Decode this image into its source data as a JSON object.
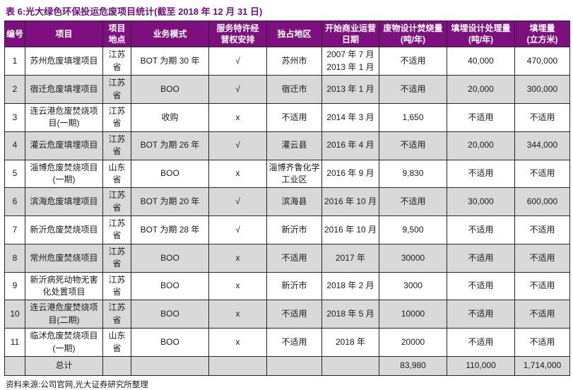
{
  "title": "表 6:光大绿色环保投运危废项目统计(截至 2018 年 12 月 31 日)",
  "columns": [
    "编号",
    "项目",
    "项目\n地点",
    "业务模式",
    "服务特许经\n营权安排",
    "独占地区",
    "开始商业运营\n日期",
    "废物设计焚烧量\n(吨/年)",
    "填埋设计处理量\n(吨/年)",
    "填埋量\n(立方米)"
  ],
  "rows": [
    [
      "1",
      "苏州危废填埋项目",
      "江苏省",
      "BOT 为期 30 年",
      "√",
      "苏州市",
      "2007 年 7 月\n2013 年 1 月",
      "不适用",
      "40,000",
      "470,000"
    ],
    [
      "2",
      "宿迁危废填埋项目",
      "江苏省",
      "BOO",
      "√",
      "宿迁市",
      "2013 年 1 月",
      "不适用",
      "20,000",
      "300,000"
    ],
    [
      "3",
      "连云港危废焚烧项目(一期)",
      "江苏省",
      "收购",
      "x",
      "不适用",
      "2014 年 3 月",
      "1,650",
      "不适用",
      "不适用"
    ],
    [
      "4",
      "灌云危废填埋项目",
      "江苏省",
      "BOT 为期 26 年",
      "√",
      "灌云县",
      "2016 年 4 月",
      "不适用",
      "20,000",
      "344,000"
    ],
    [
      "5",
      "淄博危废焚烧项目(一期)",
      "山东省",
      "BOO",
      "x",
      "淄博齐鲁化学工业区",
      "2016 年 9 月",
      "9,830",
      "不适用",
      "不适用"
    ],
    [
      "6",
      "滨海危废填埋项目",
      "江苏省",
      "BOT 为期 20 年",
      "√",
      "滨海县",
      "2016 年 10 月",
      "不适用",
      "30,000",
      "600,000"
    ],
    [
      "7",
      "新沂危废焚烧项目",
      "江苏省",
      "BOT 为期 28 年",
      "√",
      "新沂市",
      "2016 年 10 月",
      "9,500",
      "不适用",
      "不适用"
    ],
    [
      "8",
      "常州危废焚烧项目",
      "江苏省",
      "BOO",
      "x",
      "不适用",
      "2017 年",
      "30000",
      "不适用",
      "不适用"
    ],
    [
      "9",
      "新沂病死动物无害化处置项目",
      "江苏省",
      "BOO",
      "x",
      "新沂市",
      "2018 年 2 月",
      "3000",
      "不适用",
      "不适用"
    ],
    [
      "10",
      "连云港危废焚烧项目(二期)",
      "江苏省",
      "BOO",
      "x",
      "不适用",
      "2018 年 5 月",
      "10000",
      "不适用",
      "不适用"
    ],
    [
      "11",
      "临沭危废焚烧项目(一期)",
      "山东省",
      "BOO",
      "x",
      "不适用",
      "2018 年",
      "20000",
      "不适用",
      "不适用"
    ]
  ],
  "total_row": [
    "",
    "总计",
    "",
    "",
    "",
    "",
    "",
    "83,980",
    "110,000",
    "1,714,000"
  ],
  "source": "资料来源:公司官网,光大证券研究所整理",
  "colors": {
    "header_bg": "#7d0f7e",
    "title_text": "#70107e",
    "stripe": "#d9d9d9",
    "border": "#262626"
  }
}
